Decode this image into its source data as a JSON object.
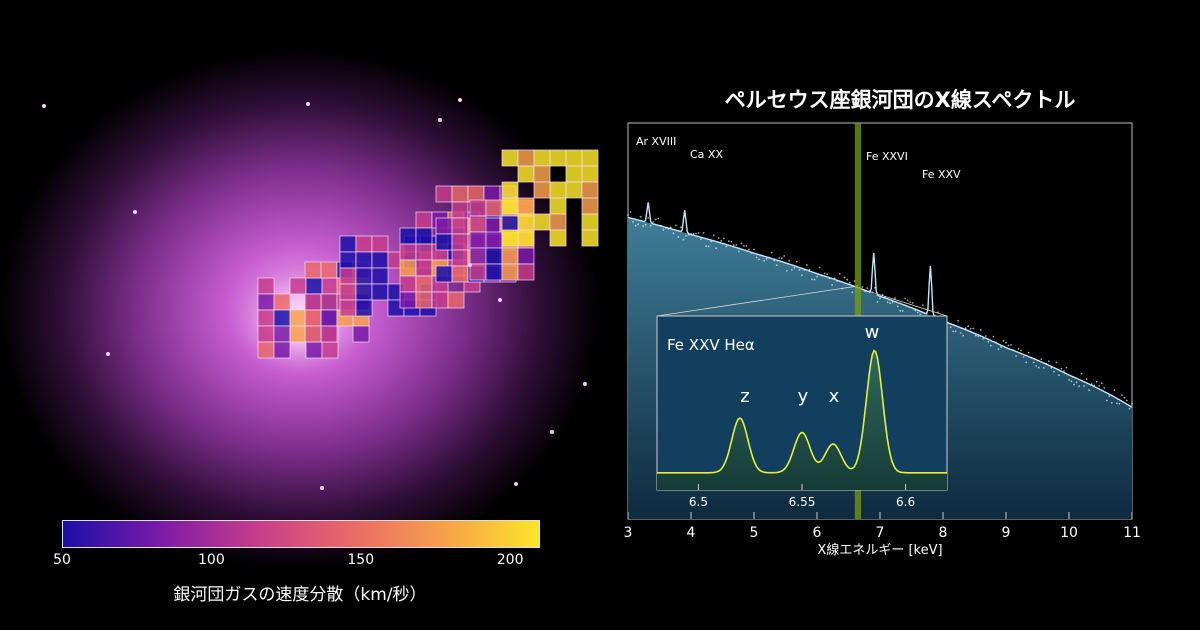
{
  "left": {
    "colorbar": {
      "ticks": [
        "50",
        "100",
        "150",
        "200"
      ],
      "tick_values": [
        50,
        100,
        150,
        200
      ],
      "range": [
        50,
        210
      ],
      "title": "銀河団ガスの速度分散（km/秒）",
      "colors": [
        "#1a0fa8",
        "#7a1aa8",
        "#c43c8c",
        "#e9686a",
        "#f7a04a",
        "#fbe62a"
      ]
    },
    "background_color": "#c05cc8"
  },
  "chart_data": [
    {
      "type": "line",
      "title": "ペルセウス座銀河団のX線スペクトル",
      "xlabel": "X線エネルギー [keV]",
      "ylabel": "",
      "xlim": [
        3,
        11
      ],
      "xticks": [
        "3",
        "4",
        "5",
        "6",
        "7",
        "8",
        "9",
        "10",
        "11"
      ],
      "y_scale": "log",
      "continuum": {
        "x": [
          3,
          4,
          5,
          6,
          7,
          8,
          9,
          10,
          11
        ],
        "y": [
          1.0,
          0.82,
          0.66,
          0.52,
          0.4,
          0.3,
          0.22,
          0.16,
          0.11
        ]
      },
      "lines": [
        {
          "name": "Ar XVIII",
          "energy": 3.32
        },
        {
          "name": "Ca XX",
          "energy": 3.9
        },
        {
          "name": "Fe XXVI",
          "energy": 6.9
        },
        {
          "name": "Fe XXV",
          "energy": 7.8
        }
      ],
      "highlight_band_keV": [
        6.6,
        6.7
      ],
      "colors": {
        "model": "#bfe8f5",
        "band": "#7a9a18",
        "fill": "#2c5a72"
      }
    },
    {
      "type": "line",
      "title": "Fe XXV Heα",
      "xlim": [
        6.48,
        6.62
      ],
      "xticks": [
        "6.5",
        "6.55",
        "6.6"
      ],
      "xtick_values": [
        6.5,
        6.55,
        6.6
      ],
      "peaks": [
        {
          "label": "z",
          "energy": 6.52,
          "rel_height": 0.38
        },
        {
          "label": "y",
          "energy": 6.55,
          "rel_height": 0.28
        },
        {
          "label": "x",
          "energy": 6.565,
          "rel_height": 0.2
        },
        {
          "label": "w",
          "energy": 6.585,
          "rel_height": 0.85
        }
      ],
      "colors": {
        "model": "#e6ef3a",
        "fill": "#1f4a46",
        "bg": "#123f5e"
      }
    }
  ]
}
